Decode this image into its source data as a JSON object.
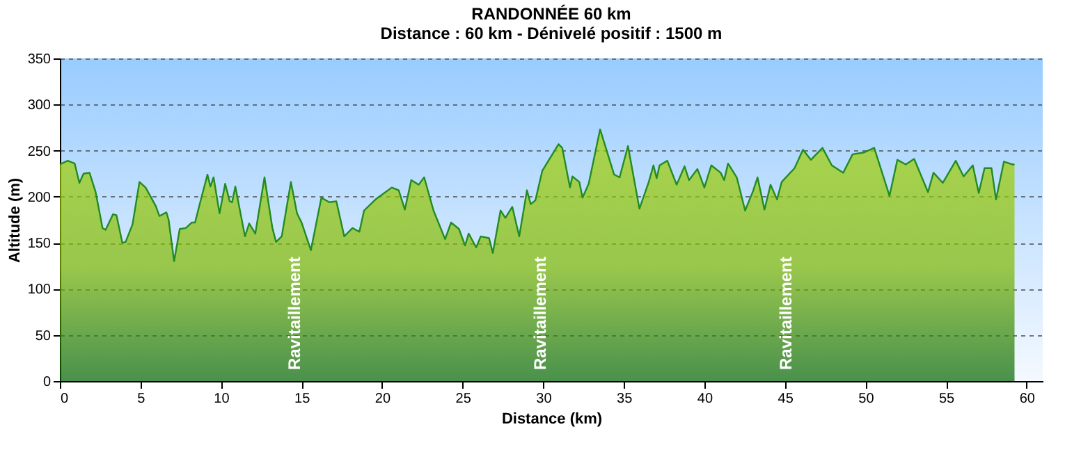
{
  "chart_data": {
    "type": "area",
    "title": "RANDONNÉE 60 km",
    "subtitle": "Distance : 60 km - Dénivelé positif : 1500 m",
    "xlabel": "Distance (km)",
    "ylabel": "Altitude (m)",
    "x": [
      0,
      0.49,
      0.92,
      1.21,
      1.47,
      1.84,
      2.22,
      2.65,
      2.84,
      3.3,
      3.51,
      3.88,
      4.08,
      4.51,
      4.94,
      5.32,
      5.95,
      6.18,
      6.61,
      6.75,
      7.09,
      7.44,
      7.82,
      8.19,
      8.39,
      8.68,
      9.16,
      9.34,
      9.54,
      9.91,
      10.26,
      10.54,
      10.69,
      10.89,
      11.49,
      11.75,
      12.13,
      12.7,
      13.19,
      13.42,
      13.77,
      14.34,
      14.72,
      15,
      15.58,
      16.23,
      16.72,
      17.16,
      17.65,
      18.16,
      18.59,
      18.88,
      19.59,
      20.6,
      21.03,
      21.41,
      21.81,
      22.27,
      22.61,
      23.19,
      23.91,
      24.28,
      24.77,
      25.15,
      25.37,
      25.84,
      26.12,
      26.64,
      26.87,
      27.35,
      27.65,
      28.08,
      28.51,
      28.99,
      29.22,
      29.51,
      29.94,
      30.95,
      31.18,
      31.66,
      31.81,
      32.24,
      32.44,
      32.82,
      33.53,
      34.4,
      34.74,
      35.26,
      35.97,
      36.55,
      36.84,
      37.04,
      37.22,
      37.7,
      38.28,
      38.77,
      39.05,
      39.57,
      40,
      40.43,
      41.01,
      41.23,
      41.47,
      42.01,
      42.53,
      43.02,
      43.3,
      43.73,
      44.11,
      44.51,
      44.8,
      45.6,
      46.12,
      46.61,
      47.33,
      47.91,
      48.62,
      49.2,
      49.91,
      50.54,
      51.49,
      51.98,
      52.5,
      53.02,
      53.88,
      54.22,
      54.8,
      55.6,
      56.09,
      56.66,
      57.03,
      57.39,
      57.82,
      58.1,
      58.59,
      59.11,
      59.25
    ],
    "series": [
      {
        "color": "#228b22",
        "values": [
          235,
          239,
          236,
          215,
          225,
          226,
          205,
          166,
          164,
          181,
          180,
          150,
          151,
          170,
          216,
          210,
          190,
          179,
          183,
          175,
          130,
          165,
          166,
          172,
          172,
          192,
          224,
          211,
          221,
          182,
          214,
          195,
          194,
          211,
          157,
          171,
          160,
          221,
          166,
          151,
          157,
          216,
          182,
          172,
          142,
          199,
          194,
          195,
          157,
          166,
          162,
          185,
          197,
          210,
          207,
          186,
          218,
          213,
          221,
          185,
          154,
          172,
          165,
          147,
          160,
          145,
          157,
          155,
          139,
          185,
          177,
          189,
          157,
          207,
          192,
          196,
          228,
          257,
          253,
          210,
          222,
          216,
          199,
          214,
          273,
          224,
          221,
          255,
          187,
          216,
          234,
          220,
          234,
          239,
          213,
          233,
          218,
          230,
          210,
          234,
          226,
          218,
          236,
          221,
          185,
          206,
          221,
          186,
          213,
          197,
          216,
          231,
          251,
          240,
          253,
          234,
          226,
          246,
          248,
          253,
          201,
          240,
          235,
          241,
          205,
          226,
          215,
          239,
          222,
          234,
          204,
          231,
          231,
          197,
          238,
          235,
          235
        ]
      }
    ],
    "xlim": [
      0,
      61
    ],
    "xticks": [
      0,
      5,
      10,
      15,
      20,
      25,
      30,
      35,
      40,
      45,
      50,
      55,
      60
    ],
    "ylim": [
      0,
      350
    ],
    "yticks": [
      0,
      50,
      100,
      150,
      200,
      250,
      300,
      350
    ],
    "grid": "y",
    "annotations": [
      "Ravitaillement",
      "Ravitaillement",
      "Ravitaillement"
    ]
  }
}
